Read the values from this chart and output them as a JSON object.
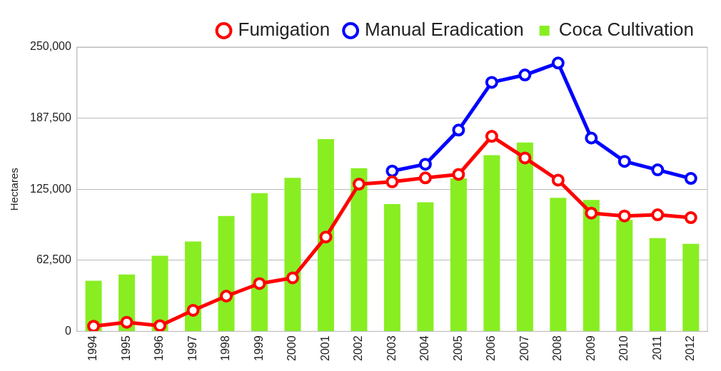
{
  "chart_data": {
    "type": "bar",
    "ylabel": "Hectares",
    "categories": [
      "1994",
      "1995",
      "1996",
      "1997",
      "1998",
      "1999",
      "2000",
      "2001",
      "2002",
      "2003",
      "2004",
      "2005",
      "2006",
      "2007",
      "2008",
      "2009",
      "2010",
      "2011",
      "2012"
    ],
    "series": [
      {
        "name": "Fumigation",
        "type": "line",
        "color": "#ff0000",
        "values": [
          4500,
          8000,
          5000,
          18500,
          31000,
          42000,
          47000,
          83000,
          129500,
          131500,
          135000,
          138000,
          171500,
          152500,
          133000,
          104000,
          101500,
          102500,
          100000
        ]
      },
      {
        "name": "Manual Eradication",
        "type": "line",
        "color": "#0000ff",
        "values": [
          null,
          null,
          null,
          null,
          null,
          null,
          null,
          null,
          null,
          141000,
          147000,
          177000,
          219000,
          225500,
          236000,
          170000,
          149500,
          142000,
          134500
        ]
      },
      {
        "name": "Coca Cultivation",
        "color": "#88ee22",
        "values": [
          44500,
          50000,
          66500,
          79000,
          101500,
          121500,
          135000,
          169000,
          143500,
          112000,
          113500,
          134500,
          155000,
          166000,
          117500,
          115500,
          98000,
          82000,
          77000
        ]
      }
    ],
    "ylim": [
      0,
      250000
    ],
    "yticks": [
      {
        "value": 0,
        "label": "0"
      },
      {
        "value": 62500,
        "label": "62,500"
      },
      {
        "value": 125000,
        "label": "125,000"
      },
      {
        "value": 187500,
        "label": "187,500"
      },
      {
        "value": 250000,
        "label": "250,000"
      }
    ],
    "grid": "y",
    "legend": "top",
    "marker": "circle"
  }
}
